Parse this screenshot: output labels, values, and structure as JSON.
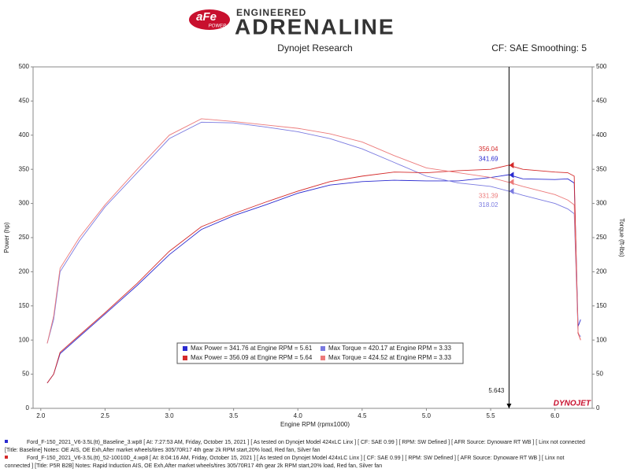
{
  "header": {
    "logo": "aFe",
    "logo_sub": "POWER",
    "tagline": "ENGINEERED",
    "brand": "ADRENALINE",
    "subtitle": "Dynojet Research",
    "settings": "CF: SAE Smoothing: 5"
  },
  "chart_data": {
    "type": "line",
    "x_label": "Engine RPM (rpmx1000)",
    "y_label": "Power (hp)",
    "y2_label": "Torque (ft-lbs)",
    "x": [
      2.05,
      2.1,
      2.15,
      2.3,
      2.5,
      2.75,
      3.0,
      3.25,
      3.5,
      3.75,
      4.0,
      4.25,
      4.5,
      4.75,
      5.0,
      5.25,
      5.5,
      5.64,
      5.75,
      6.0,
      6.1,
      6.15,
      6.18,
      6.2
    ],
    "series": [
      {
        "name": "Max Power = 341.76 at Engine RPM = 5.61",
        "color": "#2b2bd0",
        "values": [
          37,
          50,
          80,
          105,
          138,
          180,
          225,
          262,
          282,
          298,
          315,
          327,
          332,
          334,
          333,
          333,
          338,
          342,
          336,
          335,
          336,
          330,
          120,
          130
        ]
      },
      {
        "name": "Max Torque = 420.17 at Engine RPM = 3.33",
        "color": "#7a7ae0",
        "axis": "y2",
        "values": [
          95,
          130,
          200,
          245,
          295,
          345,
          395,
          419,
          418,
          412,
          405,
          395,
          380,
          360,
          340,
          330,
          325,
          318,
          312,
          300,
          292,
          285,
          110,
          105
        ]
      },
      {
        "name": "Max Power = 356.09 at Engine RPM = 5.64",
        "color": "#d42a2a",
        "values": [
          37,
          50,
          82,
          107,
          140,
          183,
          230,
          266,
          285,
          302,
          318,
          332,
          340,
          346,
          345,
          348,
          350,
          356,
          350,
          346,
          345,
          340,
          110,
          100
        ]
      },
      {
        "name": "Max Torque = 424.52 at Engine RPM = 3.33",
        "color": "#ec7a7a",
        "axis": "y2",
        "values": [
          95,
          135,
          205,
          250,
          298,
          350,
          400,
          424,
          420,
          415,
          410,
          402,
          390,
          370,
          352,
          345,
          338,
          331,
          325,
          313,
          305,
          298,
          112,
          100
        ]
      }
    ],
    "xlim": [
      1.94,
      6.29
    ],
    "ylim": [
      0,
      500
    ],
    "y2lim": [
      0,
      500
    ],
    "xticks": [
      {
        "value": 2,
        "label": "2.0"
      },
      2.5,
      {
        "value": 3,
        "label": "3.0"
      },
      3.5,
      {
        "value": 4,
        "label": "4.0"
      },
      4.5,
      {
        "value": 5,
        "label": "5.0"
      },
      5.5,
      {
        "value": 6,
        "label": "6.0"
      }
    ],
    "yticks": [
      0,
      50,
      100,
      150,
      200,
      250,
      300,
      350,
      400,
      450,
      500
    ],
    "y2ticks": [
      0,
      50,
      100,
      150,
      200,
      250,
      300,
      350,
      400,
      450,
      500
    ],
    "cursor": 5.643,
    "readouts": [
      {
        "value": 356.04,
        "color": "#d42a2a"
      },
      {
        "value": 341.69,
        "color": "#2b2bd0"
      },
      {
        "value": 331.39,
        "color": "#ec7a7a"
      },
      {
        "value": 318.02,
        "color": "#7a7ae0"
      }
    ],
    "brand_mark": "DYNOJET"
  },
  "footer": [
    "Ford_F-150_2021_V6-3.5L(tt)_Baseline_3.wp8 [ At: 7:27:53 AM, Friday, October 15, 2021 ] [ As tested on Dynojet Model 424xLC Linx ] [ CF: SAE 0.99 ] [ RPM: SW Defined ] [ AFR Source: Dynoware RT WB ] [ Linx not connected",
    "[Title: Baseline]  Notes: OE AIS, OE Exh,After market wheels/tires 305/70R17 4th gear 2k RPM start,20% load, Red fan, Silver fan",
    "Ford_F-150_2021_V6-3.5L(tt)_52-10010D_4.wp8 [ At: 8:04:16 AM, Friday, October 15, 2021 ] [ As tested on Dynojet Model 424xLC Linx ] [ CF: SAE 0.99 ] [ RPM: SW Defined ] [ AFR Source: Dynoware RT WB ] [ Linx not",
    "connected ] [Title: P5R B2B]  Notes: Rapid Induction AIS, OE Exh,After market wheels/tires 305/70R17 4th gear 2k RPM start,20% load, Red fan, Silver fan"
  ]
}
